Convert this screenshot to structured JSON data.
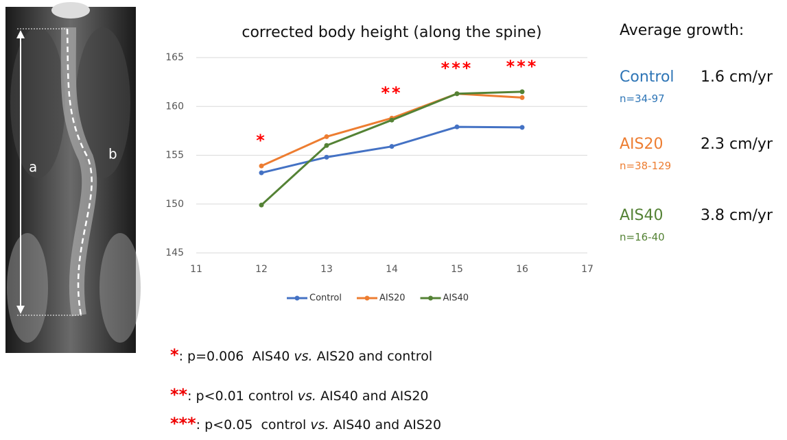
{
  "chart_data": {
    "type": "line",
    "title": "corrected body height (along the spine)",
    "x": [
      12,
      13,
      14,
      15,
      16
    ],
    "series": [
      {
        "name": "Control",
        "color": "#4472c4",
        "values": [
          153.2,
          154.8,
          155.9,
          157.9,
          157.85
        ]
      },
      {
        "name": "AIS20",
        "color": "#ed7d31",
        "values": [
          153.9,
          156.9,
          158.8,
          161.3,
          160.9
        ]
      },
      {
        "name": "AIS40",
        "color": "#548235",
        "values": [
          149.9,
          156.0,
          158.6,
          161.3,
          161.5
        ]
      }
    ],
    "xlim": [
      11,
      17
    ],
    "xticks": [
      11,
      12,
      13,
      14,
      15,
      16,
      17
    ],
    "ylim": [
      145,
      165
    ],
    "yticks": [
      145,
      150,
      155,
      160,
      165
    ],
    "grid": true,
    "legend": "bottom",
    "annotation_color": "#ff0000",
    "annotations": [
      {
        "text": "*",
        "x": 12
      },
      {
        "text": "**",
        "x": 14
      },
      {
        "text": "***",
        "x": 15
      },
      {
        "text": "***",
        "x": 16
      }
    ]
  },
  "image": {
    "labels": [
      "a",
      "b"
    ]
  },
  "growth": {
    "title": "Average growth:",
    "items": [
      {
        "name": "Control",
        "n": "n=34-97",
        "value": "1.6 cm/yr",
        "color": "#2e75b6"
      },
      {
        "name": "AIS20",
        "n": "n=38-129",
        "value": "2.3 cm/yr",
        "color": "#ed7d31"
      },
      {
        "name": "AIS40",
        "n": "n=16-40",
        "value": "3.8 cm/yr",
        "color": "#548235"
      }
    ]
  },
  "footnotes": [
    {
      "stars": "*",
      "text": ": p=0.006  AIS40 ",
      "emph": "vs.",
      "rest": " AIS20 and control"
    },
    {
      "stars": "**",
      "text": ": p<0.01 control ",
      "emph": "vs.",
      "rest": " AIS40 and AIS20"
    },
    {
      "stars": "***",
      "text": ": p<0.05  control ",
      "emph": "vs.",
      "rest": " AIS40 and AIS20"
    }
  ]
}
